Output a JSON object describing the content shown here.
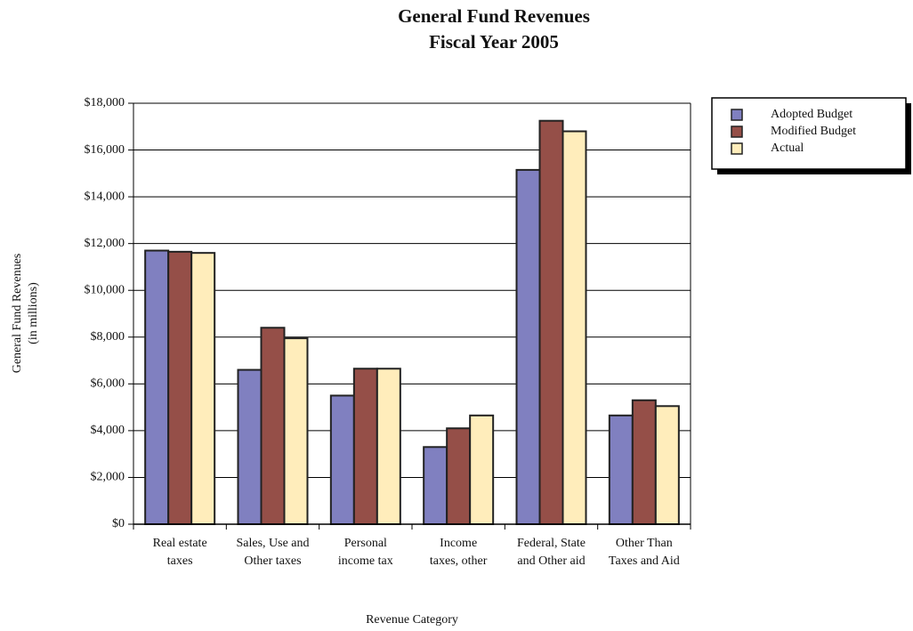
{
  "chart_data": {
    "type": "bar",
    "title": [
      "General Fund Revenues",
      "Fiscal Year 2005"
    ],
    "y_label": [
      "General Fund Revenues",
      "(in millions)"
    ],
    "x_label": "Revenue Category",
    "categories": [
      [
        "Real estate",
        "taxes"
      ],
      [
        "Sales, Use and",
        "Other taxes"
      ],
      [
        "Personal",
        "income tax"
      ],
      [
        "Income",
        "taxes, other"
      ],
      [
        "Federal, State",
        "and Other aid"
      ],
      [
        "Other Than",
        "Taxes and Aid"
      ]
    ],
    "series": [
      {
        "name": "Adopted Budget",
        "color": "#8080c0",
        "values": [
          11700,
          6600,
          5500,
          3300,
          15150,
          4650
        ]
      },
      {
        "name": "Modified Budget",
        "color": "#954f48",
        "values": [
          11650,
          8400,
          6650,
          4100,
          17250,
          5300
        ]
      },
      {
        "name": "Actual",
        "color": "#ffedbb",
        "values": [
          11600,
          7950,
          6650,
          4650,
          16800,
          5050
        ]
      }
    ],
    "ylim": [
      0,
      18000
    ],
    "yticks": [
      {
        "value": 0,
        "label": "$0"
      },
      {
        "value": 2000,
        "label": "$2,000"
      },
      {
        "value": 4000,
        "label": "$4,000"
      },
      {
        "value": 6000,
        "label": "$6,000"
      },
      {
        "value": 8000,
        "label": "$8,000"
      },
      {
        "value": 10000,
        "label": "$10,000"
      },
      {
        "value": 12000,
        "label": "$12,000"
      },
      {
        "value": 14000,
        "label": "$14,000"
      },
      {
        "value": 16000,
        "label": "$16,000"
      },
      {
        "value": 18000,
        "label": "$18,000"
      }
    ],
    "grid": true,
    "legend": "right"
  }
}
